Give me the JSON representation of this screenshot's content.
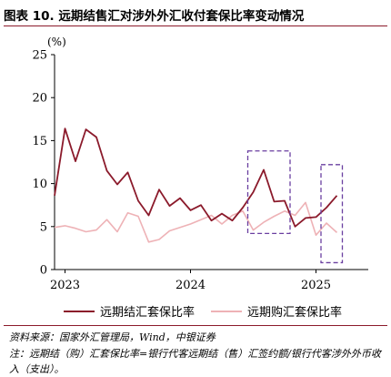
{
  "header": {
    "title": "图表 10. 远期结售汇对涉外外汇收付套保比率变动情况"
  },
  "colors": {
    "rule": "#8b1a2b",
    "highlight_box": "#6a3fa0"
  },
  "chart_data": {
    "type": "line",
    "unit_label": "(%)",
    "y_range": [
      0,
      25
    ],
    "y_ticks": [
      "0",
      "5",
      "10",
      "15",
      "20",
      "25"
    ],
    "x_range": [
      "2022-12",
      "2025-06"
    ],
    "x_ticks": [
      {
        "label": "2023",
        "date": "2023-01"
      },
      {
        "label": "2024",
        "date": "2024-01"
      },
      {
        "label": "2025",
        "date": "2025-01"
      }
    ],
    "grid": false,
    "legend_position": "bottom",
    "series": [
      {
        "name": "远期结汇套保比率",
        "color": "#8b1a2b",
        "points": [
          [
            "2022-12",
            8.6
          ],
          [
            "2023-01",
            16.4
          ],
          [
            "2023-02",
            12.6
          ],
          [
            "2023-03",
            16.3
          ],
          [
            "2023-04",
            15.4
          ],
          [
            "2023-05",
            11.5
          ],
          [
            "2023-06",
            9.9
          ],
          [
            "2023-07",
            11.3
          ],
          [
            "2023-08",
            8.0
          ],
          [
            "2023-09",
            6.3
          ],
          [
            "2023-10",
            9.3
          ],
          [
            "2023-11",
            7.4
          ],
          [
            "2023-12",
            8.3
          ],
          [
            "2024-01",
            6.9
          ],
          [
            "2024-02",
            7.5
          ],
          [
            "2024-03",
            5.7
          ],
          [
            "2024-04",
            6.5
          ],
          [
            "2024-05",
            5.7
          ],
          [
            "2024-06",
            7.2
          ],
          [
            "2024-07",
            9.0
          ],
          [
            "2024-08",
            11.6
          ],
          [
            "2024-09",
            7.9
          ],
          [
            "2024-10",
            8.0
          ],
          [
            "2024-11",
            5.0
          ],
          [
            "2024-12",
            6.0
          ],
          [
            "2025-01",
            6.1
          ],
          [
            "2025-02",
            7.2
          ],
          [
            "2025-03",
            8.6
          ]
        ]
      },
      {
        "name": "远期购汇套保比率",
        "color": "#eeb2b6",
        "points": [
          [
            "2022-12",
            4.9
          ],
          [
            "2023-01",
            5.1
          ],
          [
            "2023-02",
            4.8
          ],
          [
            "2023-03",
            4.4
          ],
          [
            "2023-04",
            4.6
          ],
          [
            "2023-05",
            5.8
          ],
          [
            "2023-06",
            4.4
          ],
          [
            "2023-07",
            6.6
          ],
          [
            "2023-08",
            6.2
          ],
          [
            "2023-09",
            3.2
          ],
          [
            "2023-10",
            3.5
          ],
          [
            "2023-11",
            4.5
          ],
          [
            "2023-12",
            4.9
          ],
          [
            "2024-01",
            5.3
          ],
          [
            "2024-02",
            5.8
          ],
          [
            "2024-03",
            6.3
          ],
          [
            "2024-04",
            5.3
          ],
          [
            "2024-05",
            6.3
          ],
          [
            "2024-06",
            6.8
          ],
          [
            "2024-07",
            4.6
          ],
          [
            "2024-08",
            5.5
          ],
          [
            "2024-09",
            6.2
          ],
          [
            "2024-10",
            6.8
          ],
          [
            "2024-11",
            6.3
          ],
          [
            "2024-12",
            7.8
          ],
          [
            "2025-01",
            4.0
          ],
          [
            "2025-02",
            5.4
          ],
          [
            "2025-03",
            4.3
          ]
        ]
      }
    ],
    "annotations": [
      {
        "type": "dashed-box",
        "from": "2024-07",
        "to": "2024-10",
        "y_from": 4.2,
        "y_to": 13.8
      },
      {
        "type": "dashed-box",
        "from": "2025-02",
        "to": "2025-03",
        "y_from": 0.8,
        "y_to": 12.2
      }
    ]
  },
  "footer": {
    "source": "资料来源：国家外汇管理局，Wind，中银证券",
    "note": "注：远期结（购）汇套保比率=银行代客远期结（售）汇签约额/银行代客涉外外币收入（支出）。"
  }
}
